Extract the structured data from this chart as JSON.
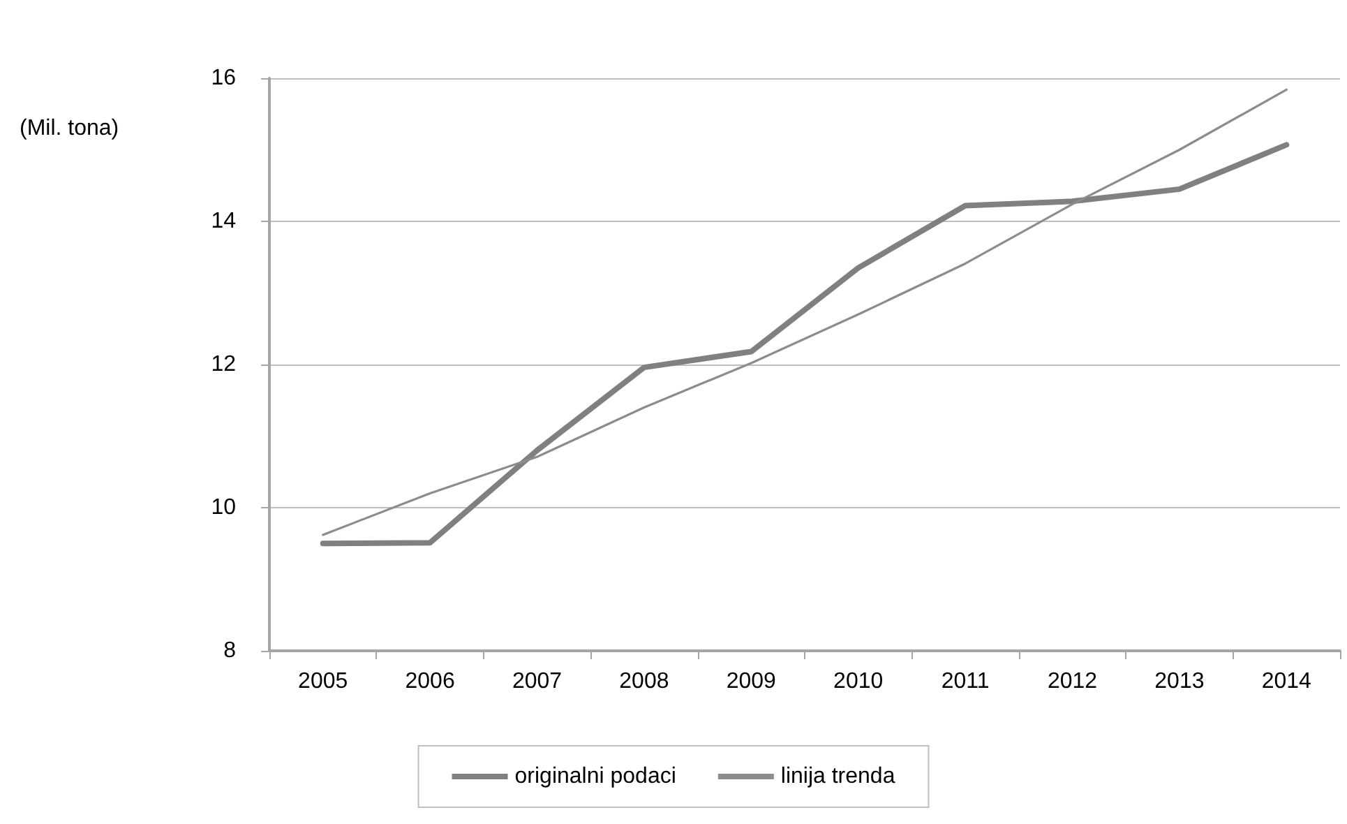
{
  "chart_data": {
    "type": "line",
    "ylabel": "(Mil. tona)",
    "categories": [
      "2005",
      "2006",
      "2007",
      "2008",
      "2009",
      "2010",
      "2011",
      "2012",
      "2013",
      "2014"
    ],
    "series": [
      {
        "name": "originalni podaci",
        "color": "#808080",
        "values": [
          9.5,
          9.51,
          10.8,
          11.96,
          12.18,
          13.35,
          14.22,
          14.28,
          14.45,
          15.07
        ]
      },
      {
        "name": "linija trenda",
        "color": "#8c8c8c",
        "values": [
          9.62,
          10.2,
          10.71,
          11.4,
          12.02,
          12.7,
          13.41,
          14.24,
          15.0,
          15.84
        ]
      }
    ],
    "ylim": [
      8,
      16
    ],
    "yticks": [
      8,
      10,
      12,
      14,
      16
    ],
    "grid": "y",
    "legend": "bottom",
    "marker": "none",
    "line_style": "solid"
  }
}
